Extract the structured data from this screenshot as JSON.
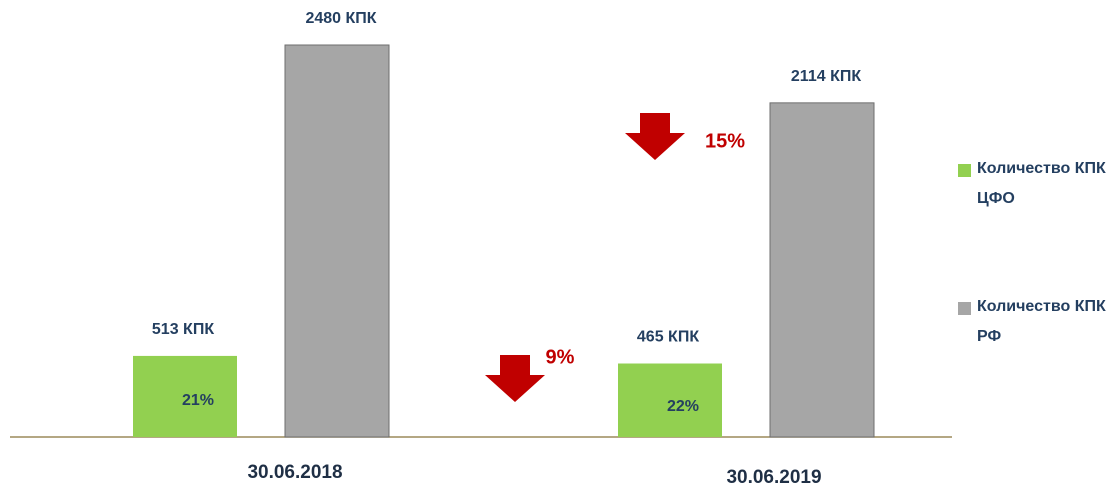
{
  "chart_data": {
    "type": "bar",
    "categories": [
      "30.06.2018",
      "30.06.2019"
    ],
    "series": [
      {
        "name": "Количество КПК ЦФО",
        "color": "#92d050",
        "values": [
          513,
          465
        ],
        "value_labels": [
          "513 КПК",
          "465 КПК"
        ],
        "shares": [
          21,
          22
        ],
        "share_labels": [
          "21%",
          "22%"
        ]
      },
      {
        "name": "Количество КПК РФ",
        "color": "#a6a6a6",
        "values": [
          2480,
          2114
        ],
        "value_labels": [
          "2480 КПК",
          "2114 КПК"
        ]
      }
    ],
    "changes": [
      {
        "value": 9,
        "label": "9%"
      },
      {
        "value": 15,
        "label": "15%"
      }
    ],
    "legend": "right"
  }
}
